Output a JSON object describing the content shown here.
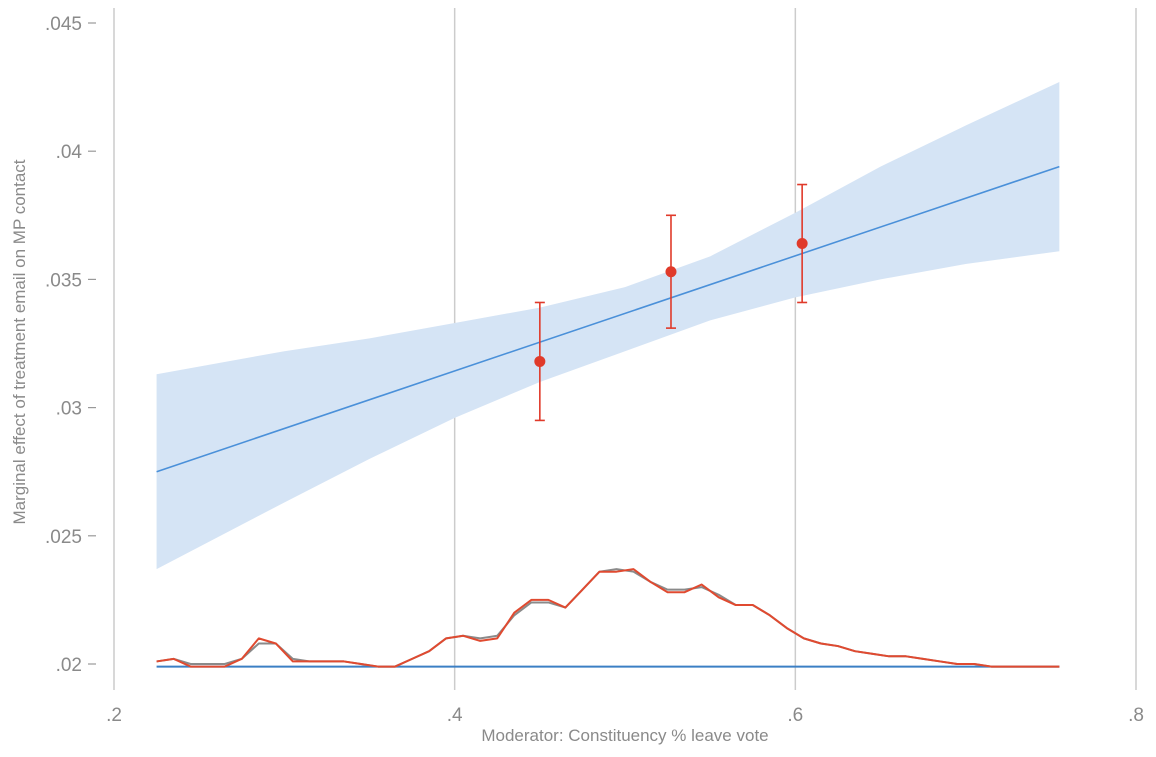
{
  "chart_data": {
    "type": "line",
    "title": "",
    "xlabel": "Moderator: Constituency % leave vote",
    "ylabel": "Marginal effect of treatment email on MP contact",
    "xlim": [
      0.2,
      0.8
    ],
    "ylim": [
      0.02,
      0.045
    ],
    "x_ticks": [
      0.2,
      0.4,
      0.6,
      0.8
    ],
    "x_tick_labels": [
      ".2",
      ".4",
      ".6",
      ".8"
    ],
    "y_ticks": [
      0.02,
      0.025,
      0.03,
      0.035,
      0.04,
      0.045
    ],
    "y_tick_labels": [
      ".02",
      ".025",
      ".03",
      ".035",
      ".04",
      ".045"
    ],
    "grid": "vertical",
    "colors": {
      "line": "#4a90d9",
      "band": "#d5e4f5",
      "points": "#e03a2a",
      "density_gray": "#8a8a8a",
      "density_red": "#e04a30",
      "baseline": "#3b7fc4",
      "grid": "#cccccc"
    },
    "fitted_line": {
      "x": [
        0.225,
        0.755
      ],
      "y": [
        0.0275,
        0.0394
      ]
    },
    "confidence_band": {
      "x": [
        0.225,
        0.3,
        0.35,
        0.4,
        0.45,
        0.5,
        0.55,
        0.6,
        0.65,
        0.7,
        0.755
      ],
      "lower": [
        0.0237,
        0.0263,
        0.028,
        0.0296,
        0.031,
        0.0322,
        0.0334,
        0.0343,
        0.035,
        0.0356,
        0.0361
      ],
      "upper": [
        0.0313,
        0.0322,
        0.0327,
        0.0333,
        0.0339,
        0.0347,
        0.0359,
        0.0376,
        0.0394,
        0.041,
        0.0427
      ]
    },
    "bin_estimates": {
      "x": [
        0.45,
        0.527,
        0.604
      ],
      "y": [
        0.0318,
        0.0353,
        0.0364
      ],
      "lower": [
        0.0295,
        0.0331,
        0.0341
      ],
      "upper": [
        0.0341,
        0.0375,
        0.0387
      ]
    },
    "baseline_y": 0.0199,
    "density_gray": {
      "x": [
        0.225,
        0.235,
        0.245,
        0.255,
        0.265,
        0.275,
        0.285,
        0.295,
        0.305,
        0.315,
        0.325,
        0.335,
        0.345,
        0.355,
        0.365,
        0.375,
        0.385,
        0.395,
        0.405,
        0.415,
        0.425,
        0.435,
        0.445,
        0.455,
        0.465,
        0.475,
        0.485,
        0.495,
        0.505,
        0.515,
        0.525,
        0.535,
        0.545,
        0.555,
        0.565,
        0.575,
        0.585,
        0.595,
        0.605,
        0.615,
        0.625,
        0.635,
        0.645,
        0.655,
        0.665,
        0.675,
        0.685,
        0.695,
        0.705,
        0.715,
        0.725,
        0.735,
        0.745,
        0.755
      ],
      "y": [
        0.0201,
        0.0202,
        0.02,
        0.02,
        0.02,
        0.0202,
        0.0208,
        0.0208,
        0.0202,
        0.0201,
        0.0201,
        0.0201,
        0.02,
        0.0199,
        0.0199,
        0.0202,
        0.0205,
        0.021,
        0.0211,
        0.021,
        0.0211,
        0.0219,
        0.0224,
        0.0224,
        0.0222,
        0.0229,
        0.0236,
        0.0237,
        0.0236,
        0.0232,
        0.0229,
        0.0229,
        0.023,
        0.0227,
        0.0223,
        0.0223,
        0.0219,
        0.0214,
        0.021,
        0.0208,
        0.0207,
        0.0205,
        0.0204,
        0.0203,
        0.0203,
        0.0202,
        0.0201,
        0.02,
        0.02,
        0.0199,
        0.0199,
        0.0199,
        0.0199,
        0.0199
      ]
    },
    "density_red": {
      "x": [
        0.225,
        0.235,
        0.245,
        0.255,
        0.265,
        0.275,
        0.285,
        0.295,
        0.305,
        0.315,
        0.325,
        0.335,
        0.345,
        0.355,
        0.365,
        0.375,
        0.385,
        0.395,
        0.405,
        0.415,
        0.425,
        0.435,
        0.445,
        0.455,
        0.465,
        0.475,
        0.485,
        0.495,
        0.505,
        0.515,
        0.525,
        0.535,
        0.545,
        0.555,
        0.565,
        0.575,
        0.585,
        0.595,
        0.605,
        0.615,
        0.625,
        0.635,
        0.645,
        0.655,
        0.665,
        0.675,
        0.685,
        0.695,
        0.705,
        0.715,
        0.725,
        0.735,
        0.745,
        0.755
      ],
      "y": [
        0.0201,
        0.0202,
        0.0199,
        0.0199,
        0.0199,
        0.0202,
        0.021,
        0.0208,
        0.0201,
        0.0201,
        0.0201,
        0.0201,
        0.02,
        0.0199,
        0.0199,
        0.0202,
        0.0205,
        0.021,
        0.0211,
        0.0209,
        0.021,
        0.022,
        0.0225,
        0.0225,
        0.0222,
        0.0229,
        0.0236,
        0.0236,
        0.0237,
        0.0232,
        0.0228,
        0.0228,
        0.0231,
        0.0226,
        0.0223,
        0.0223,
        0.0219,
        0.0214,
        0.021,
        0.0208,
        0.0207,
        0.0205,
        0.0204,
        0.0203,
        0.0203,
        0.0202,
        0.0201,
        0.02,
        0.02,
        0.0199,
        0.0199,
        0.0199,
        0.0199,
        0.0199
      ]
    }
  }
}
